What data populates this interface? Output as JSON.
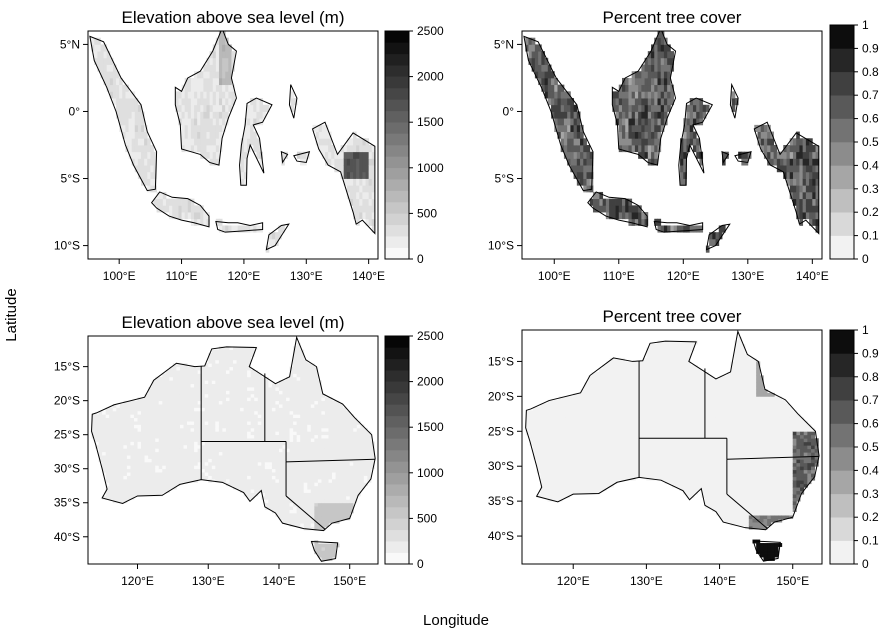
{
  "figure": {
    "ylabel": "Latitude",
    "xlabel": "Longitude"
  },
  "chart_data": [
    {
      "type": "heatmap",
      "title": "Elevation above sea level (m)",
      "region": "Indonesia",
      "xlim": [
        95,
        141.5
      ],
      "ylim": [
        -11,
        6
      ],
      "x_ticks": [
        {
          "v": 100,
          "label": "100°E"
        },
        {
          "v": 110,
          "label": "110°E"
        },
        {
          "v": 120,
          "label": "120°E"
        },
        {
          "v": 130,
          "label": "130°E"
        },
        {
          "v": 140,
          "label": "140°E"
        }
      ],
      "y_ticks": [
        {
          "v": 5,
          "label": "5°N"
        },
        {
          "v": 0,
          "label": "0°"
        },
        {
          "v": -5,
          "label": "5°S"
        },
        {
          "v": -10,
          "label": "10°S"
        }
      ],
      "colorbar": {
        "min": 0,
        "max": 2500,
        "ticks": [
          {
            "v": 0,
            "label": "0"
          },
          {
            "v": 500,
            "label": "500"
          },
          {
            "v": 1000,
            "label": "1000"
          },
          {
            "v": 1500,
            "label": "1500"
          },
          {
            "v": 2000,
            "label": "2000"
          },
          {
            "v": 2500,
            "label": "2500"
          }
        ],
        "levels": 20,
        "low_color": "#ffffff",
        "high_color": "#000000"
      }
    },
    {
      "type": "heatmap",
      "title": "Percent tree cover",
      "region": "Indonesia",
      "xlim": [
        95,
        141.5
      ],
      "ylim": [
        -11,
        6
      ],
      "x_ticks": [
        {
          "v": 100,
          "label": "100°E"
        },
        {
          "v": 110,
          "label": "110°E"
        },
        {
          "v": 120,
          "label": "120°E"
        },
        {
          "v": 130,
          "label": "130°E"
        },
        {
          "v": 140,
          "label": "140°E"
        }
      ],
      "y_ticks": [
        {
          "v": 5,
          "label": "5°N"
        },
        {
          "v": 0,
          "label": "0°"
        },
        {
          "v": -5,
          "label": "5°S"
        },
        {
          "v": -10,
          "label": "10°S"
        }
      ],
      "colorbar": {
        "min": 0,
        "max": 1,
        "ticks": [
          {
            "v": 0,
            "label": "0"
          },
          {
            "v": 0.1,
            "label": "0.1"
          },
          {
            "v": 0.2,
            "label": "0.2"
          },
          {
            "v": 0.3,
            "label": "0.3"
          },
          {
            "v": 0.4,
            "label": "0.4"
          },
          {
            "v": 0.5,
            "label": "0.5"
          },
          {
            "v": 0.6,
            "label": "0.6"
          },
          {
            "v": 0.7,
            "label": "0.7"
          },
          {
            "v": 0.8,
            "label": "0.8"
          },
          {
            "v": 0.9,
            "label": "0.9"
          },
          {
            "v": 1,
            "label": "1"
          }
        ],
        "levels": 10,
        "low_color": "#ffffff",
        "high_color": "#000000"
      }
    },
    {
      "type": "heatmap",
      "title": "Elevation above sea level (m)",
      "region": "Australia",
      "xlim": [
        113,
        154
      ],
      "ylim": [
        -44,
        -10.5
      ],
      "x_ticks": [
        {
          "v": 120,
          "label": "120°E"
        },
        {
          "v": 130,
          "label": "130°E"
        },
        {
          "v": 140,
          "label": "140°E"
        },
        {
          "v": 150,
          "label": "150°E"
        }
      ],
      "y_ticks": [
        {
          "v": -15,
          "label": "15°S"
        },
        {
          "v": -20,
          "label": "20°S"
        },
        {
          "v": -25,
          "label": "25°S"
        },
        {
          "v": -30,
          "label": "30°S"
        },
        {
          "v": -35,
          "label": "35°S"
        },
        {
          "v": -40,
          "label": "40°S"
        }
      ],
      "colorbar": {
        "min": 0,
        "max": 2500,
        "ticks": [
          {
            "v": 0,
            "label": "0"
          },
          {
            "v": 500,
            "label": "500"
          },
          {
            "v": 1000,
            "label": "1000"
          },
          {
            "v": 1500,
            "label": "1500"
          },
          {
            "v": 2000,
            "label": "2000"
          },
          {
            "v": 2500,
            "label": "2500"
          }
        ],
        "levels": 20,
        "low_color": "#ffffff",
        "high_color": "#000000"
      }
    },
    {
      "type": "heatmap",
      "title": "Percent tree cover",
      "region": "Australia",
      "xlim": [
        113,
        154
      ],
      "ylim": [
        -44,
        -10.5
      ],
      "x_ticks": [
        {
          "v": 120,
          "label": "120°E"
        },
        {
          "v": 130,
          "label": "130°E"
        },
        {
          "v": 140,
          "label": "140°E"
        },
        {
          "v": 150,
          "label": "150°E"
        }
      ],
      "y_ticks": [
        {
          "v": -15,
          "label": "15°S"
        },
        {
          "v": -20,
          "label": "20°S"
        },
        {
          "v": -25,
          "label": "25°S"
        },
        {
          "v": -30,
          "label": "30°S"
        },
        {
          "v": -35,
          "label": "35°S"
        },
        {
          "v": -40,
          "label": "40°S"
        }
      ],
      "colorbar": {
        "min": 0,
        "max": 1,
        "ticks": [
          {
            "v": 0,
            "label": "0"
          },
          {
            "v": 0.1,
            "label": "0.1"
          },
          {
            "v": 0.2,
            "label": "0.2"
          },
          {
            "v": 0.3,
            "label": "0.3"
          },
          {
            "v": 0.4,
            "label": "0.4"
          },
          {
            "v": 0.5,
            "label": "0.5"
          },
          {
            "v": 0.6,
            "label": "0.6"
          },
          {
            "v": 0.7,
            "label": "0.7"
          },
          {
            "v": 0.8,
            "label": "0.8"
          },
          {
            "v": 0.9,
            "label": "0.9"
          },
          {
            "v": 1,
            "label": "1"
          }
        ],
        "levels": 10,
        "low_color": "#ffffff",
        "high_color": "#000000"
      }
    }
  ]
}
